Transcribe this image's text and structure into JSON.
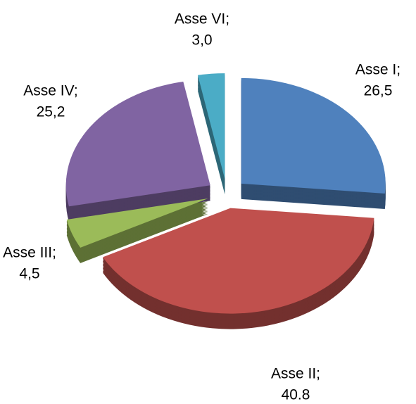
{
  "chart_data": {
    "type": "pie",
    "categories": [
      "Asse I;",
      "Asse II;",
      "Asse III;",
      "Asse IV;",
      "Asse VI;"
    ],
    "values": [
      26.5,
      40.8,
      4.5,
      25.2,
      3.0
    ],
    "value_labels": [
      "26,5",
      "40.8",
      "4,5",
      "25,2",
      "3,0"
    ],
    "colors": [
      "#4f81bd",
      "#c0504d",
      "#9bbb59",
      "#8064a2",
      "#4bacc6"
    ]
  }
}
